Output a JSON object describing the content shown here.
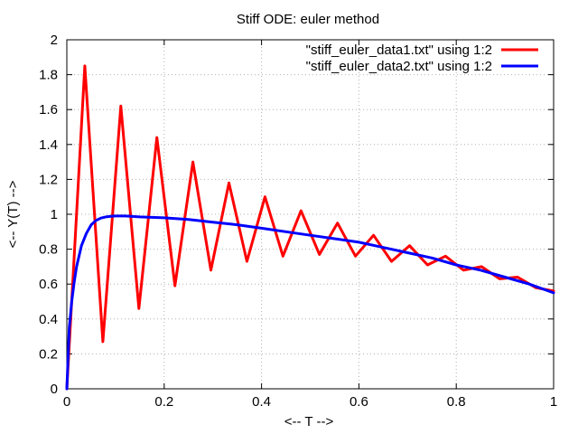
{
  "chart_data": {
    "type": "line",
    "title": "Stiff ODE: euler method",
    "xlabel": "<-- T -->",
    "ylabel": "<-- Y(T) -->",
    "xlim": [
      0,
      1
    ],
    "ylim": [
      0,
      2
    ],
    "x_ticks": [
      0,
      0.2,
      0.4,
      0.6,
      0.8,
      1
    ],
    "x_tick_labels": [
      "0",
      "0.2",
      "0.4",
      "0.6",
      "0.8",
      "1"
    ],
    "y_ticks": [
      0,
      0.2,
      0.4,
      0.6,
      0.8,
      1,
      1.2,
      1.4,
      1.6,
      1.8,
      2
    ],
    "y_tick_labels": [
      "0",
      "0.2",
      "0.4",
      "0.6",
      "0.8",
      "1",
      "1.2",
      "1.4",
      "1.6",
      "1.8",
      "2"
    ],
    "grid": true,
    "legend_position": "top-right",
    "series": [
      {
        "name": "\"stiff_euler_data1.txt\" using 1:2",
        "color": "#ff0000",
        "x": [
          0,
          0.037,
          0.074,
          0.111,
          0.148,
          0.185,
          0.222,
          0.259,
          0.296,
          0.333,
          0.37,
          0.407,
          0.444,
          0.481,
          0.519,
          0.556,
          0.593,
          0.63,
          0.667,
          0.704,
          0.741,
          0.778,
          0.815,
          0.852,
          0.889,
          0.926,
          0.963,
          1.0
        ],
        "y": [
          0,
          1.85,
          0.27,
          1.62,
          0.46,
          1.44,
          0.59,
          1.3,
          0.68,
          1.18,
          0.73,
          1.1,
          0.76,
          1.02,
          0.77,
          0.95,
          0.76,
          0.88,
          0.73,
          0.82,
          0.71,
          0.76,
          0.68,
          0.7,
          0.63,
          0.64,
          0.58,
          0.56
        ]
      },
      {
        "name": "\"stiff_euler_data2.txt\" using 1:2",
        "color": "#0000ff",
        "x": [
          0,
          0.005,
          0.01,
          0.015,
          0.02,
          0.03,
          0.04,
          0.05,
          0.06,
          0.07,
          0.08,
          0.09,
          0.1,
          0.12,
          0.15,
          0.2,
          0.25,
          0.3,
          0.35,
          0.4,
          0.45,
          0.5,
          0.55,
          0.6,
          0.65,
          0.7,
          0.75,
          0.8,
          0.85,
          0.9,
          0.95,
          1.0
        ],
        "y": [
          0,
          0.35,
          0.5,
          0.61,
          0.7,
          0.82,
          0.89,
          0.94,
          0.965,
          0.978,
          0.985,
          0.988,
          0.99,
          0.99,
          0.985,
          0.98,
          0.97,
          0.955,
          0.94,
          0.92,
          0.9,
          0.88,
          0.86,
          0.84,
          0.81,
          0.78,
          0.75,
          0.71,
          0.68,
          0.64,
          0.6,
          0.55
        ]
      }
    ]
  }
}
